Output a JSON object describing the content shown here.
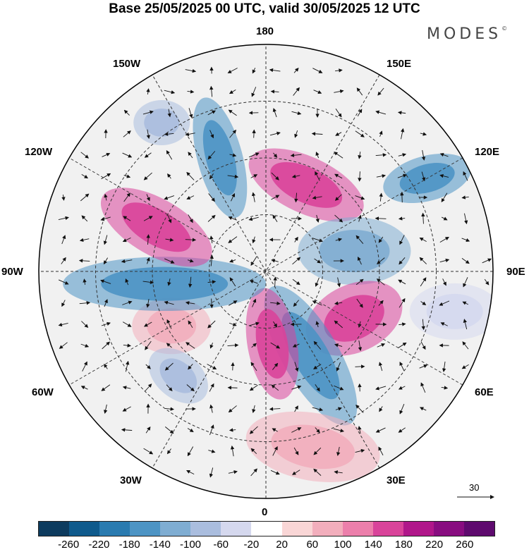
{
  "title": "Base 25/05/2025 00 UTC, valid 30/05/2025 12 UTC",
  "brand": {
    "text": "MODES",
    "mark": "©"
  },
  "longitude_labels": {
    "top": "180",
    "bottom": "0",
    "left": "90W",
    "right": "90E",
    "upper_left_1": "150W",
    "upper_left_2": "120W",
    "upper_right_1": "150E",
    "upper_right_2": "120E",
    "lower_left_1": "60W",
    "lower_left_2": "30W",
    "lower_right_1": "60E",
    "lower_right_2": "30E"
  },
  "reference_vector": {
    "label": "30"
  },
  "colorbar": {
    "labels": [
      "-260",
      "-220",
      "-180",
      "-140",
      "-100",
      "-60",
      "-20",
      "20",
      "60",
      "100",
      "140",
      "180",
      "220",
      "260"
    ],
    "colors": [
      "#0d3b5e",
      "#0f5a8c",
      "#2a7bb0",
      "#4d94c4",
      "#7fadd2",
      "#aabdde",
      "#d5d8ee",
      "#ffffff",
      "#f9d6d6",
      "#f2aebc",
      "#ec7fab",
      "#d9449a",
      "#b0178a",
      "#880d80",
      "#5e0a6e"
    ]
  },
  "anomaly_blobs": [
    {
      "lon": -158,
      "colat": 0.54,
      "a": 55,
      "b": 20,
      "rot": 75,
      "level": "-140"
    },
    {
      "lon": 120,
      "colat": 0.82,
      "a": 40,
      "b": 20,
      "rot": -15,
      "level": "-140"
    },
    {
      "lon": 155,
      "colat": 0.42,
      "a": 55,
      "b": 25,
      "rot": 25,
      "level": "140"
    },
    {
      "lon": 103,
      "colat": 0.4,
      "a": 50,
      "b": 30,
      "rot": 0,
      "level": "-100"
    },
    {
      "lon": 62,
      "colat": 0.44,
      "a": 45,
      "b": 30,
      "rot": -25,
      "level": "140"
    },
    {
      "lon": 28,
      "colat": 0.42,
      "a": 70,
      "b": 25,
      "rot": 60,
      "level": "-140"
    },
    {
      "lon": 5,
      "colat": 0.32,
      "a": 50,
      "b": 22,
      "rot": 80,
      "level": "140"
    },
    {
      "lon": -60,
      "colat": 0.48,
      "a": 35,
      "b": 25,
      "rot": 0,
      "level": "60"
    },
    {
      "lon": -83,
      "colat": 0.45,
      "a": 90,
      "b": 24,
      "rot": 0,
      "level": "-140"
    },
    {
      "lon": -112,
      "colat": 0.52,
      "a": 55,
      "b": 25,
      "rot": 30,
      "level": "140"
    },
    {
      "lon": -145,
      "colat": 0.8,
      "a": 25,
      "b": 20,
      "rot": 0,
      "level": "-60"
    },
    {
      "lon": -40,
      "colat": 0.6,
      "a": 30,
      "b": 20,
      "rot": 40,
      "level": "-60"
    },
    {
      "lon": 15,
      "colat": 0.8,
      "a": 60,
      "b": 30,
      "rot": 10,
      "level": "60"
    },
    {
      "lon": 78,
      "colat": 0.85,
      "a": 40,
      "b": 25,
      "rot": 0,
      "level": "-20"
    }
  ]
}
